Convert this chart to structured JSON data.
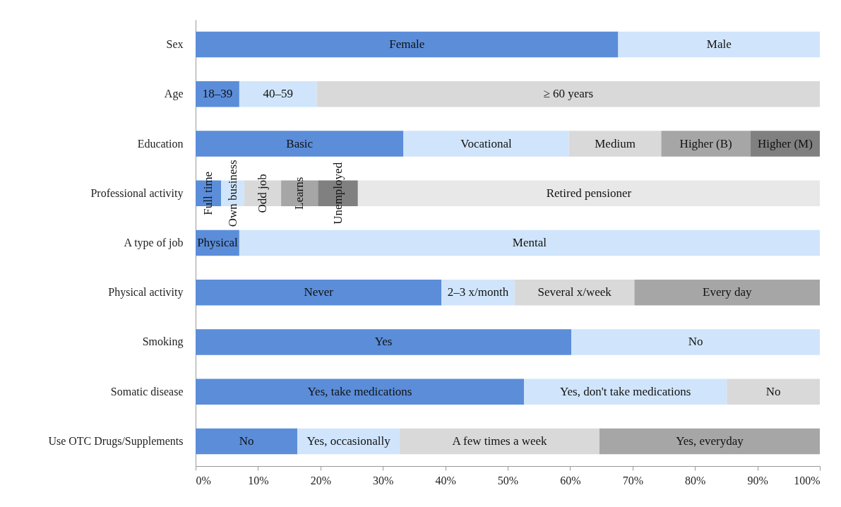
{
  "chart_data": {
    "type": "bar",
    "orientation": "horizontal",
    "stacked": true,
    "categories": [
      "Sex",
      "Age",
      "Education",
      "Professional activity",
      "A type of job",
      "Physical activity",
      "Smoking",
      "Somatic disease",
      "Use OTC Drugs/Supplements"
    ],
    "series": [
      {
        "color": "#5b8dd9",
        "values": [
          67.7,
          7.0,
          33.3,
          4.1,
          7.0,
          39.4,
          60.2,
          52.6,
          16.3
        ],
        "value_labels": [
          "Female",
          "18–39",
          "Basic",
          "Full time",
          "Physical",
          "Never",
          "Yes",
          "Yes, take medications",
          "No"
        ]
      },
      {
        "color": "#d0e5fb",
        "values": [
          32.3,
          12.4,
          26.5,
          3.7,
          93.0,
          11.7,
          39.8,
          32.5,
          16.4
        ],
        "value_labels": [
          "Male",
          "40–59",
          "Vocational",
          "Own business",
          "Mental",
          "2–3 x/month",
          "No",
          "Yes, don't take medications",
          "Yes, occasionally"
        ]
      },
      {
        "color": "#d9d9d9",
        "values": [
          null,
          80.6,
          14.8,
          5.9,
          null,
          19.2,
          null,
          14.9,
          32.0
        ],
        "value_labels": [
          null,
          "≥ 60 years",
          "Medium",
          "Odd job",
          null,
          "Several x/week",
          null,
          "No",
          "A few times a week"
        ]
      },
      {
        "color": "#a6a6a6",
        "values": [
          null,
          null,
          14.3,
          5.9,
          null,
          29.7,
          null,
          null,
          35.3
        ],
        "value_labels": [
          null,
          null,
          "Higher (B)",
          "Learns",
          null,
          "Every day",
          null,
          null,
          "Yes, everyday"
        ]
      },
      {
        "color": "#808080",
        "values": [
          null,
          null,
          11.1,
          6.4,
          null,
          null,
          null,
          null,
          null
        ],
        "value_labels": [
          null,
          null,
          "Higher (M)",
          "Unemployed",
          null,
          null,
          null,
          null,
          null
        ]
      },
      {
        "color": "#e8e8e8",
        "values": [
          null,
          null,
          null,
          74.0,
          null,
          null,
          null,
          null,
          null
        ],
        "value_labels": [
          null,
          null,
          null,
          "Retired pensioner",
          null,
          null,
          null,
          null,
          null
        ]
      }
    ],
    "xlim": [
      0,
      100
    ],
    "xticks": [
      {
        "value": 0,
        "label": "0%"
      },
      {
        "value": 10,
        "label": "10%"
      },
      {
        "value": 20,
        "label": "20%"
      },
      {
        "value": 30,
        "label": "30%"
      },
      {
        "value": 40,
        "label": "40%"
      },
      {
        "value": 50,
        "label": "50%"
      },
      {
        "value": 60,
        "label": "60%"
      },
      {
        "value": 70,
        "label": "70%"
      },
      {
        "value": 80,
        "label": "80%"
      },
      {
        "value": 90,
        "label": "90%"
      },
      {
        "value": 100,
        "label": "100%"
      }
    ]
  }
}
